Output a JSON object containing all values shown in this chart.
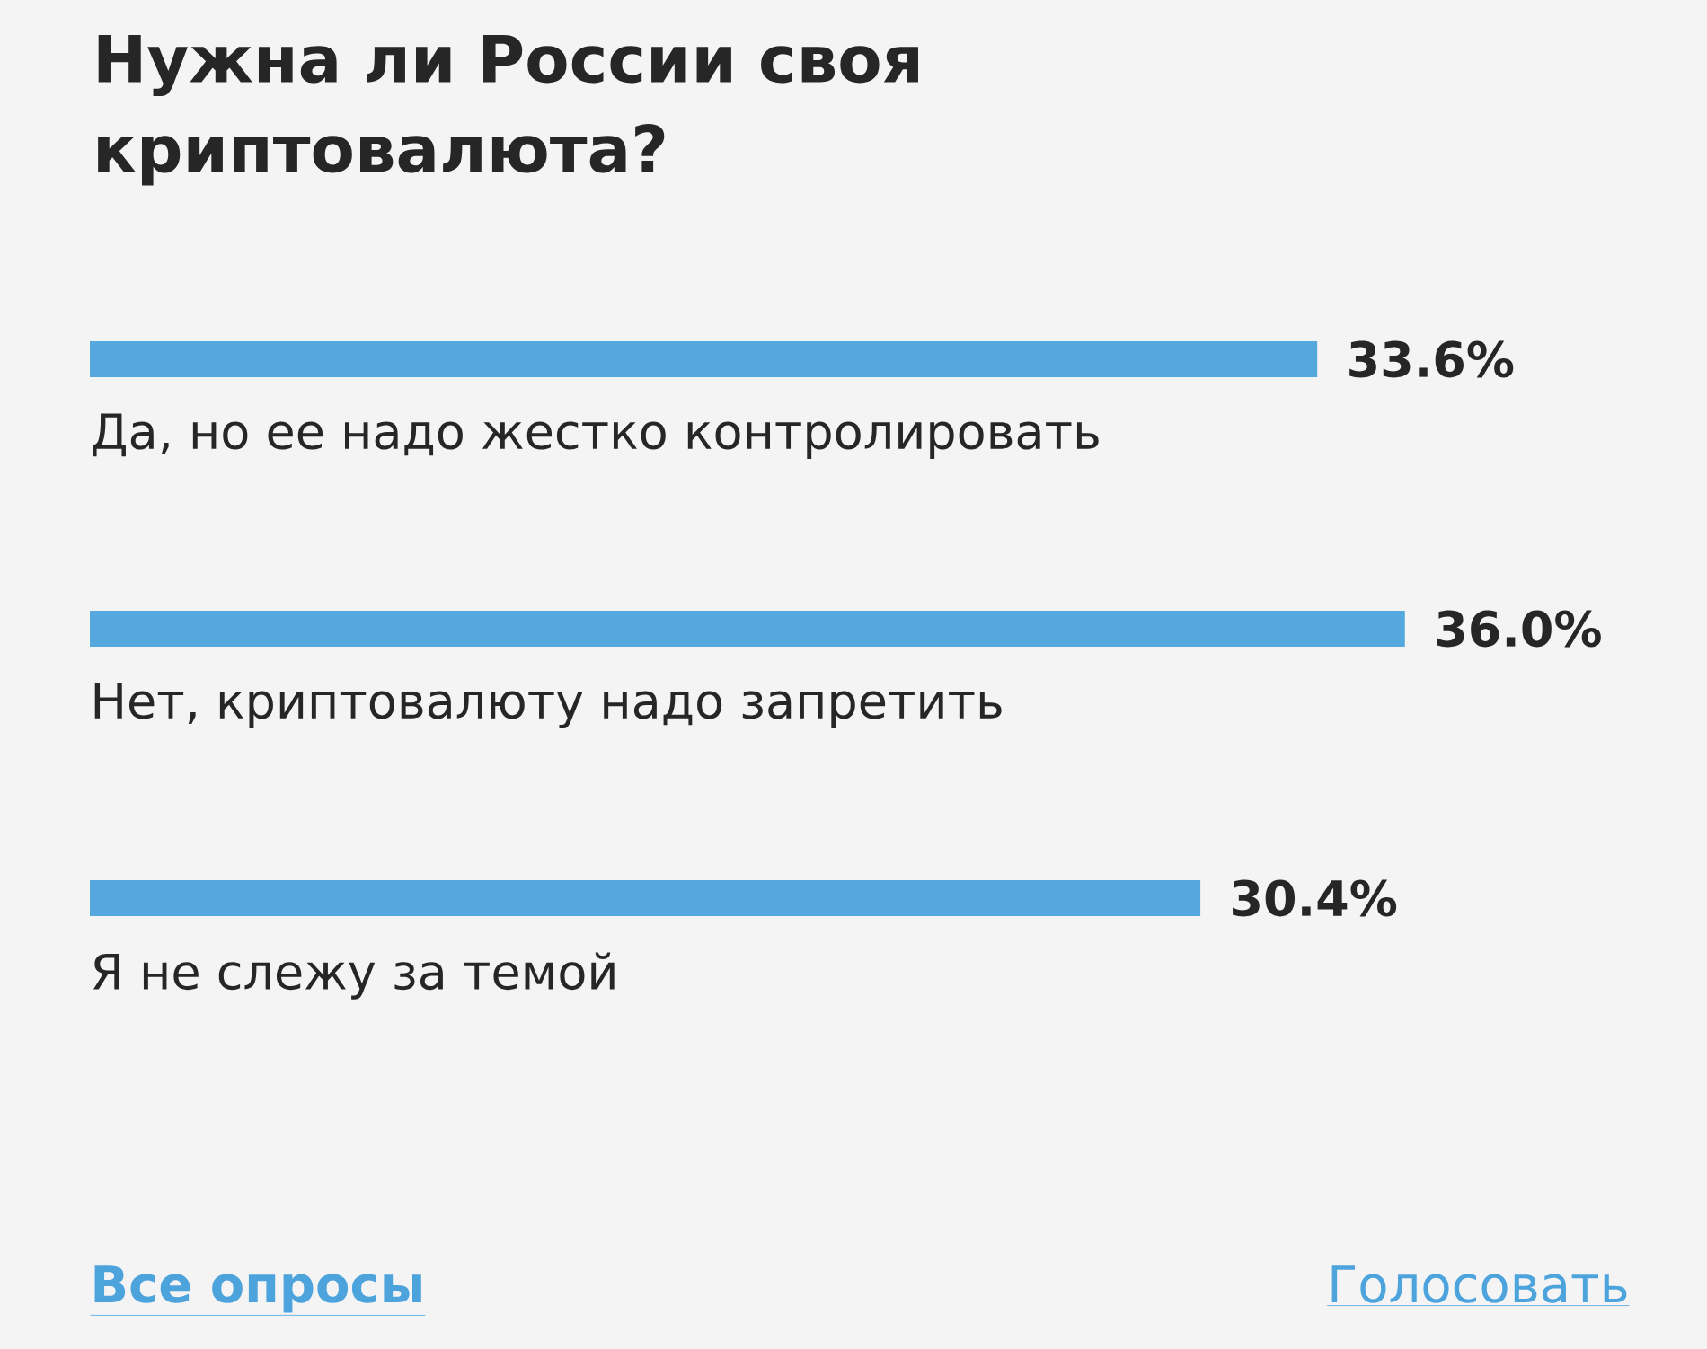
{
  "chart_data": {
    "type": "bar",
    "orientation": "horizontal",
    "title": "Нужна ли России своя криптовалюта?",
    "categories": [
      "Да, но ее надо жестко контролировать",
      "Нет, криптовалюту надо запретить",
      "Я не слежу за темой"
    ],
    "values": [
      33.6,
      36.0,
      30.4
    ],
    "color": "#55a8dd",
    "value_labels": [
      "33.6%",
      "36.0%",
      "30.4%"
    ],
    "annotations": [
      "Все опросы",
      "Голосовать"
    ]
  }
}
